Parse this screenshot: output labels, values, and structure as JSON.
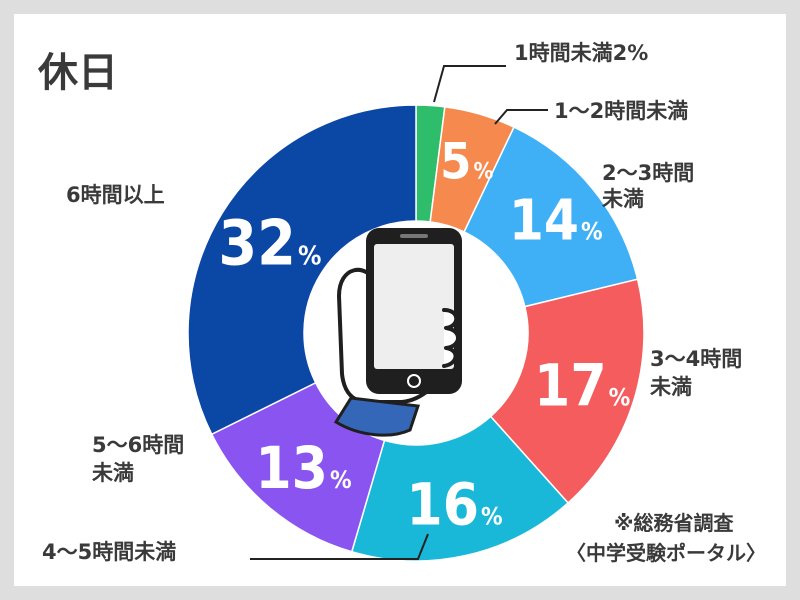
{
  "title": "休日",
  "source_line1": "※総務省調査",
  "source_line2": "〈中学受験ポータル〉",
  "colors": {
    "background": "#dedede",
    "card": "#ffffff",
    "text": "#3a3a3a",
    "phone": "#1f1f1f"
  },
  "icons": [
    "hand-holding-smartphone-icon"
  ],
  "chart_data": {
    "type": "pie",
    "title": "休日",
    "donut": true,
    "unit": "%",
    "slices": [
      {
        "label": "1時間未満",
        "value": 2,
        "value_text": "1時間未満2%",
        "color": "#2ebd6b"
      },
      {
        "label": "1〜2時間未満",
        "value": 5,
        "value_text": "5",
        "color": "#f5894e"
      },
      {
        "label": "2〜3時間未満",
        "value": 14,
        "value_text": "14",
        "color": "#3fb0f5"
      },
      {
        "label": "3〜4時間未満",
        "value": 17,
        "value_text": "17",
        "color": "#f45c5e"
      },
      {
        "label": "4〜5時間未満",
        "value": 16,
        "value_text": "16",
        "color": "#1ab8d8"
      },
      {
        "label": "5〜6時間未満",
        "value": 13,
        "value_text": "13",
        "color": "#8a54f0"
      },
      {
        "label": "6時間以上",
        "value": 32,
        "value_text": "32",
        "color": "#0b47a4"
      }
    ],
    "callouts": [
      {
        "lines": [
          "1時間未満2%"
        ]
      },
      {
        "lines": [
          "1〜2時間未満"
        ]
      },
      {
        "lines": [
          "2〜3時間",
          "未満"
        ]
      },
      {
        "lines": [
          "3〜4時間",
          "未満"
        ]
      },
      {
        "lines": [
          "4〜5時間未満"
        ]
      },
      {
        "lines": [
          "5〜6時間",
          "未満"
        ]
      },
      {
        "lines": [
          "6時間以上"
        ]
      }
    ]
  }
}
